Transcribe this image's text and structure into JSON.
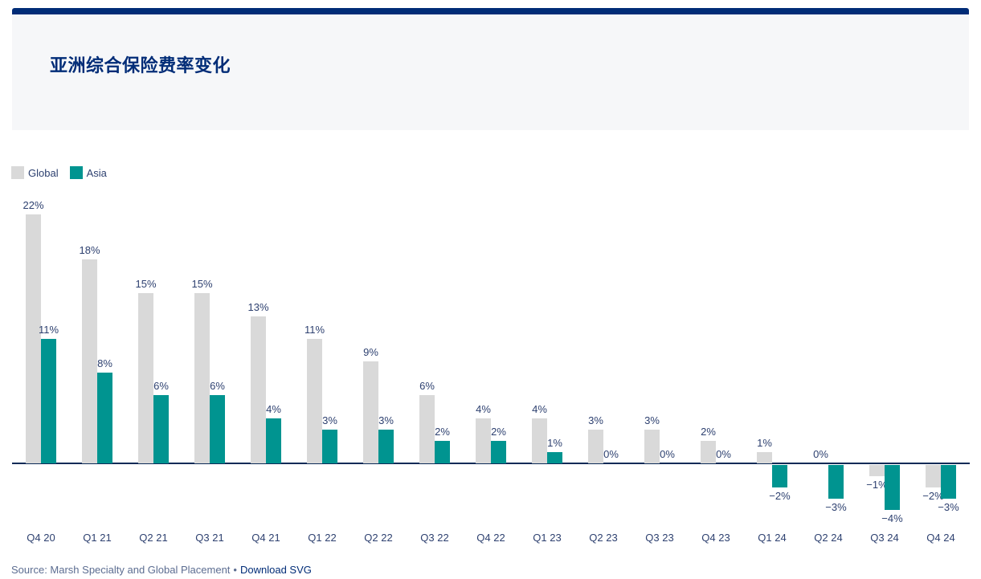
{
  "header": {
    "title": "亚洲综合保险费率变化"
  },
  "legend": [
    {
      "label": "Global",
      "color": "#d9d9d9"
    },
    {
      "label": "Asia",
      "color": "#009490"
    }
  ],
  "chart_data": {
    "type": "bar",
    "title": "亚洲综合保险费率变化",
    "categories": [
      "Q4 20",
      "Q1 21",
      "Q2 21",
      "Q3 21",
      "Q4 21",
      "Q1 22",
      "Q2 22",
      "Q3 22",
      "Q4 22",
      "Q1 23",
      "Q2 23",
      "Q3 23",
      "Q4 23",
      "Q1 24",
      "Q2 24",
      "Q3 24",
      "Q4 24"
    ],
    "series": [
      {
        "name": "Global",
        "color": "#d9d9d9",
        "values": [
          22,
          18,
          15,
          15,
          13,
          11,
          9,
          6,
          4,
          4,
          3,
          3,
          2,
          1,
          0,
          -1,
          -2
        ],
        "labels": [
          "22%",
          "18%",
          "15%",
          "15%",
          "13%",
          "11%",
          "9%",
          "6%",
          "4%",
          "4%",
          "3%",
          "3%",
          "2%",
          "1%",
          "0%",
          "−1%",
          "−2%"
        ]
      },
      {
        "name": "Asia",
        "color": "#009490",
        "values": [
          11,
          8,
          6,
          6,
          4,
          3,
          3,
          2,
          2,
          1,
          0,
          0,
          0,
          -2,
          -3,
          -4,
          -3
        ],
        "labels": [
          "11%",
          "8%",
          "6%",
          "6%",
          "4%",
          "3%",
          "3%",
          "2%",
          "2%",
          "1%",
          "0%",
          "0%",
          "0%",
          "−2%",
          "−3%",
          "−4%",
          "−3%"
        ]
      }
    ],
    "value_suffix": "%",
    "ylim": [
      -5,
      23
    ],
    "grid": false,
    "data_labels": true,
    "legend_position": "top-left",
    "xlabel": "",
    "ylabel": ""
  },
  "footer": {
    "source": "Source: Marsh Specialty and Global Placement",
    "separator": "•",
    "download_label": "Download SVG"
  },
  "colors": {
    "accent_navy": "#002c77",
    "panel_bg": "#f6f7f9",
    "bar_global": "#d9d9d9",
    "bar_asia": "#009490",
    "label_text": "#2e4170",
    "source_text": "#5c6d91",
    "axis_line": "#0d2b57"
  }
}
